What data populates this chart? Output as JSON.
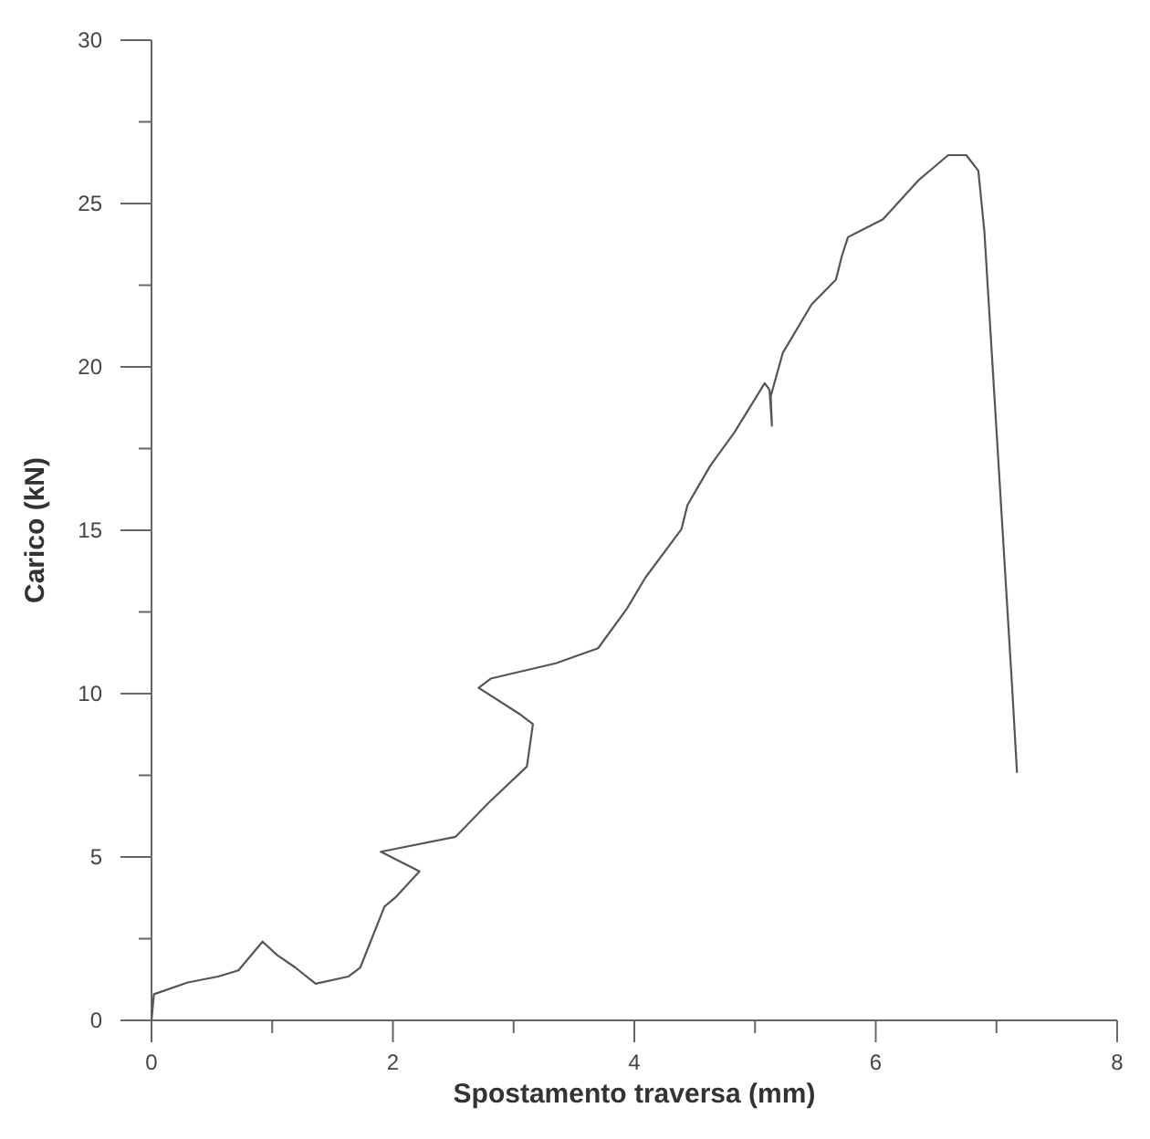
{
  "chart_data": {
    "type": "line",
    "xlabel": "Spostamento traversa (mm)",
    "ylabel": "Carico (kN)",
    "xlim": [
      0,
      8
    ],
    "ylim": [
      0,
      30
    ],
    "xticks": [
      0,
      {
        "value": 1,
        "label": null
      },
      2,
      {
        "value": 3,
        "label": null
      },
      4,
      {
        "value": 5,
        "label": null
      },
      6,
      {
        "value": 7,
        "label": null
      },
      8
    ],
    "yticks": [
      0,
      {
        "value": 2.5,
        "label": null
      },
      5,
      {
        "value": 7.5,
        "label": null
      },
      10,
      {
        "value": 12.5,
        "label": null
      },
      15,
      {
        "value": 17.5,
        "label": null
      },
      20,
      {
        "value": 22.5,
        "label": null
      },
      25,
      {
        "value": 27.5,
        "label": null
      },
      30
    ],
    "grid": false,
    "marker": "none",
    "line_style": "solid",
    "series": [
      {
        "color": "#555555",
        "x": [
          0,
          0.02,
          0.3,
          0.55,
          0.72,
          0.92,
          1.04,
          1.19,
          1.36,
          1.63,
          1.73,
          1.93,
          2.02,
          2.22,
          1.9,
          2.52,
          2.79,
          3.11,
          3.16,
          3.06,
          2.71,
          2.81,
          3.35,
          3.7,
          3.94,
          4.09,
          4.39,
          4.44,
          4.63,
          4.83,
          5.08,
          5.12,
          5.14,
          5.13,
          5.23,
          5.47,
          5.67,
          5.72,
          5.77,
          6.06,
          6.36,
          6.6,
          6.75,
          6.85,
          6.9,
          7.13,
          7.17
        ],
        "values": [
          0,
          0.8,
          1.16,
          1.34,
          1.53,
          2.41,
          2.0,
          1.62,
          1.12,
          1.34,
          1.62,
          3.48,
          3.76,
          4.56,
          5.16,
          5.62,
          6.65,
          7.77,
          9.07,
          9.35,
          10.18,
          10.46,
          10.93,
          11.39,
          12.61,
          13.54,
          15.03,
          15.77,
          16.98,
          18.0,
          19.5,
          19.3,
          18.2,
          19.1,
          20.43,
          21.92,
          22.67,
          23.4,
          23.97,
          24.52,
          25.73,
          26.48,
          26.48,
          26.0,
          24.15,
          10.2,
          7.6
        ]
      }
    ]
  }
}
